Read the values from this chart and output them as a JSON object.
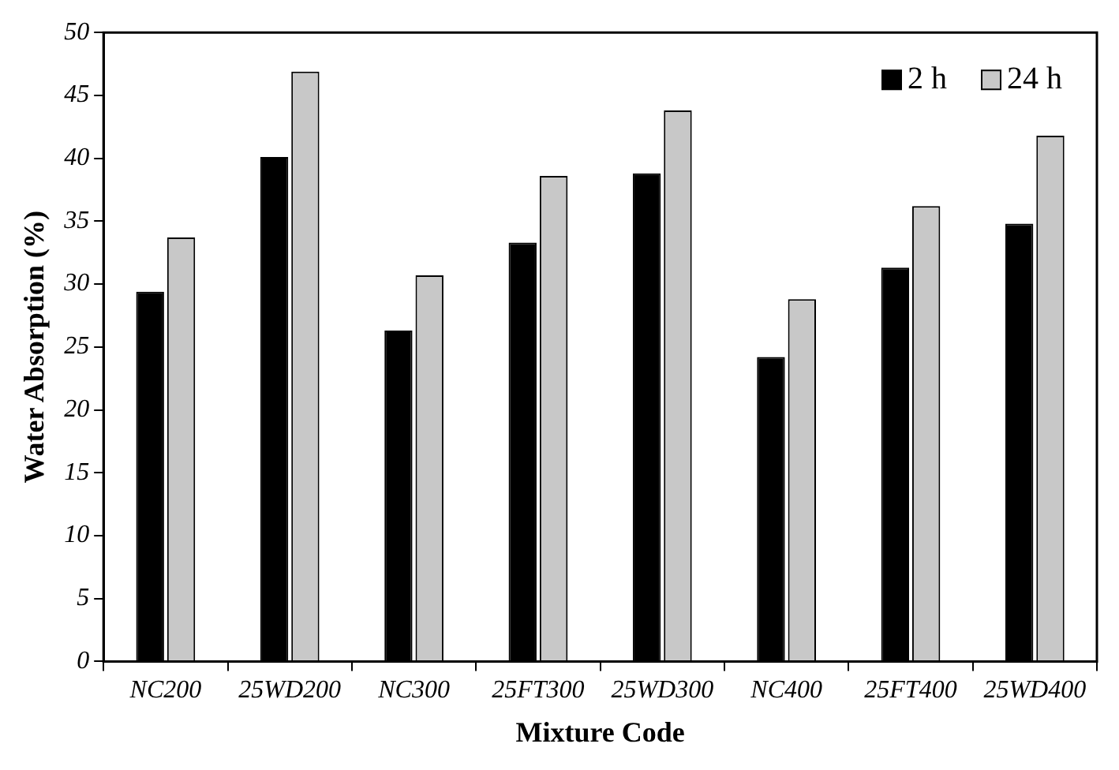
{
  "chart_data": {
    "type": "bar",
    "xlabel": "Mixture Code",
    "ylabel": "Water Absorption (%)",
    "categories": [
      "NC200",
      "25WD200",
      "NC300",
      "25FT300",
      "25WD300",
      "NC400",
      "25FT400",
      "25WD400"
    ],
    "series": [
      {
        "name": "2 h",
        "color": "#000000",
        "values": [
          29.4,
          40.1,
          26.3,
          33.3,
          38.8,
          24.2,
          31.3,
          34.8
        ]
      },
      {
        "name": "24 h",
        "color": "#c8c8c8",
        "values": [
          33.7,
          46.9,
          30.7,
          38.6,
          43.8,
          28.8,
          36.2,
          41.8
        ]
      }
    ],
    "ylim": [
      0,
      50
    ],
    "yticks": [
      0,
      5,
      10,
      15,
      20,
      25,
      30,
      35,
      40,
      45,
      50
    ],
    "grid": false,
    "legend": "top right"
  }
}
